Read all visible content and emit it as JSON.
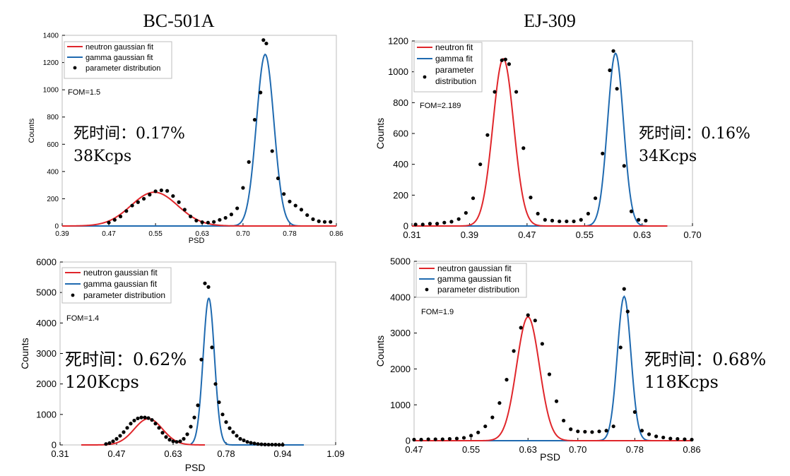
{
  "colors": {
    "neutron": "#e0262b",
    "gamma": "#1f6ab0",
    "points": "#000000",
    "axis": "#000000",
    "box": "#bdbdbd"
  },
  "chart_data": [
    {
      "type": "line",
      "column_title": "BC-501A",
      "xlabel": "PSD",
      "ylabel": "Counts",
      "xlim": [
        0.39,
        0.86
      ],
      "ylim": [
        0,
        1400
      ],
      "xticks": [
        "0.39",
        "0.47",
        "0.55",
        "0.63",
        "0.70",
        "0.78",
        "0.86"
      ],
      "yticks": [
        "0",
        "200",
        "400",
        "600",
        "800",
        "1000",
        "1200",
        "1400"
      ],
      "legend": {
        "position": "top-left",
        "entries": [
          "neutron gaussian fit",
          "gamma gaussian fit",
          "parameter distribution"
        ]
      },
      "fom": "FOM=1.5",
      "annotation": {
        "line1": "死时间：0.17%",
        "line2": "38Kcps"
      },
      "neutron_fit": {
        "mean": 0.548,
        "sigma": 0.04,
        "amplitude": 248,
        "range": [
          0.39,
          0.86
        ]
      },
      "gamma_fit": {
        "mean": 0.738,
        "sigma": 0.015,
        "amplitude": 1260,
        "range": [
          0.39,
          0.86
        ]
      },
      "points": {
        "x": [
          0.47,
          0.48,
          0.49,
          0.5,
          0.51,
          0.52,
          0.53,
          0.54,
          0.55,
          0.56,
          0.57,
          0.58,
          0.59,
          0.6,
          0.61,
          0.62,
          0.63,
          0.64,
          0.65,
          0.66,
          0.67,
          0.68,
          0.69,
          0.7,
          0.71,
          0.72,
          0.73,
          0.735,
          0.74,
          0.75,
          0.76,
          0.77,
          0.78,
          0.79,
          0.8,
          0.81,
          0.82,
          0.83,
          0.84,
          0.85
        ],
        "y": [
          25,
          45,
          70,
          110,
          150,
          175,
          200,
          230,
          255,
          262,
          258,
          220,
          175,
          120,
          70,
          40,
          28,
          25,
          30,
          45,
          60,
          85,
          130,
          280,
          470,
          780,
          980,
          1365,
          1340,
          550,
          350,
          235,
          180,
          150,
          120,
          80,
          50,
          35,
          30,
          30
        ]
      }
    },
    {
      "type": "line",
      "column_title": "EJ-309",
      "xlabel": "",
      "ylabel": "Counts",
      "xlim": [
        0.31,
        0.7
      ],
      "ylim": [
        0,
        1200
      ],
      "xticks": [
        "0.31",
        "0.39",
        "0.47",
        "0.55",
        "0.63",
        "0.70"
      ],
      "yticks": [
        "0",
        "200",
        "400",
        "600",
        "800",
        "1000",
        "1200"
      ],
      "legend": {
        "position": "top-left",
        "entries": [
          "neutron fit",
          "gamma fit",
          "parameter distribution"
        ]
      },
      "fom": "FOM=2.189",
      "annotation": {
        "line1": "死时间：0.16%",
        "line2": "34Kcps"
      },
      "neutron_fit": {
        "mean": 0.437,
        "sigma": 0.0145,
        "amplitude": 1085,
        "range": [
          0.31,
          0.665
        ]
      },
      "gamma_fit": {
        "mean": 0.593,
        "sigma": 0.011,
        "amplitude": 1120,
        "range": [
          0.31,
          0.665
        ]
      },
      "points": {
        "x": [
          0.315,
          0.325,
          0.335,
          0.345,
          0.355,
          0.365,
          0.375,
          0.385,
          0.395,
          0.405,
          0.415,
          0.425,
          0.435,
          0.44,
          0.445,
          0.455,
          0.465,
          0.475,
          0.485,
          0.495,
          0.505,
          0.515,
          0.525,
          0.535,
          0.545,
          0.555,
          0.565,
          0.575,
          0.585,
          0.59,
          0.595,
          0.605,
          0.615,
          0.625,
          0.635
        ],
        "y": [
          10,
          10,
          15,
          15,
          22,
          28,
          45,
          85,
          180,
          400,
          590,
          870,
          1075,
          1080,
          1050,
          870,
          505,
          185,
          80,
          40,
          35,
          30,
          30,
          30,
          40,
          80,
          180,
          470,
          1010,
          1135,
          890,
          390,
          95,
          40,
          35
        ]
      }
    },
    {
      "type": "line",
      "column_title": "",
      "xlabel": "PSD",
      "ylabel": "Counts",
      "xlim": [
        0.31,
        1.09
      ],
      "ylim": [
        0,
        6000
      ],
      "xticks": [
        "0.31",
        "0.47",
        "0.63",
        "0.78",
        "0.94",
        "1.09"
      ],
      "yticks": [
        "0",
        "1000",
        "2000",
        "3000",
        "4000",
        "5000",
        "6000"
      ],
      "legend": {
        "position": "top-left",
        "entries": [
          "neutron gaussian fit",
          "gamma gaussian fit",
          "parameter distribution"
        ]
      },
      "fom": "FOM=1.4",
      "annotation": {
        "line1": "死时间：0.62%",
        "line2": "120Kcps"
      },
      "neutron_fit": {
        "mean": 0.56,
        "sigma": 0.04,
        "amplitude": 860,
        "range": [
          0.37,
          0.72
        ]
      },
      "gamma_fit": {
        "mean": 0.731,
        "sigma": 0.016,
        "amplitude": 4810,
        "range": [
          0.68,
          1.0
        ]
      },
      "points": {
        "x": [
          0.44,
          0.45,
          0.46,
          0.47,
          0.48,
          0.49,
          0.5,
          0.51,
          0.52,
          0.53,
          0.54,
          0.55,
          0.56,
          0.57,
          0.58,
          0.59,
          0.6,
          0.61,
          0.62,
          0.63,
          0.64,
          0.65,
          0.66,
          0.67,
          0.68,
          0.69,
          0.7,
          0.71,
          0.72,
          0.73,
          0.74,
          0.75,
          0.76,
          0.77,
          0.78,
          0.79,
          0.8,
          0.81,
          0.82,
          0.83,
          0.84,
          0.85,
          0.86,
          0.87,
          0.88,
          0.89,
          0.9,
          0.91,
          0.92,
          0.93,
          0.94
        ],
        "y": [
          30,
          60,
          120,
          200,
          300,
          420,
          560,
          700,
          800,
          870,
          900,
          900,
          880,
          820,
          700,
          560,
          400,
          260,
          170,
          120,
          100,
          120,
          200,
          350,
          600,
          900,
          1300,
          2800,
          5300,
          5180,
          3200,
          2000,
          1400,
          1000,
          750,
          550,
          420,
          300,
          200,
          150,
          100,
          70,
          50,
          30,
          20,
          15,
          10,
          10,
          8,
          5,
          5
        ]
      }
    },
    {
      "type": "line",
      "column_title": "",
      "xlabel": "PSD",
      "ylabel": "Counts",
      "xlim": [
        0.47,
        0.86
      ],
      "ylim": [
        0,
        5000
      ],
      "xticks": [
        "0.47",
        "0.55",
        "0.63",
        "0.70",
        "0.78",
        "0.86"
      ],
      "yticks": [
        "0",
        "1000",
        "2000",
        "3000",
        "4000",
        "5000"
      ],
      "legend": {
        "position": "top-left",
        "entries": [
          "neutron gaussian fit",
          "gamma gaussian fit",
          "parameter distribution"
        ]
      },
      "fom": "FOM=1.9",
      "annotation": {
        "line1": "死时间：0.68%",
        "line2": "118Kcps"
      },
      "neutron_fit": {
        "mean": 0.63,
        "sigma": 0.016,
        "amplitude": 3450,
        "range": [
          0.47,
          0.86
        ]
      },
      "gamma_fit": {
        "mean": 0.765,
        "sigma": 0.0095,
        "amplitude": 4020,
        "range": [
          0.47,
          0.86
        ]
      },
      "points": {
        "x": [
          0.47,
          0.48,
          0.49,
          0.5,
          0.51,
          0.52,
          0.53,
          0.54,
          0.55,
          0.56,
          0.57,
          0.58,
          0.59,
          0.6,
          0.61,
          0.62,
          0.63,
          0.64,
          0.65,
          0.66,
          0.67,
          0.68,
          0.69,
          0.7,
          0.71,
          0.72,
          0.73,
          0.74,
          0.75,
          0.76,
          0.765,
          0.77,
          0.78,
          0.79,
          0.8,
          0.81,
          0.82,
          0.83,
          0.84,
          0.85,
          0.86
        ],
        "y": [
          30,
          30,
          40,
          40,
          40,
          50,
          60,
          80,
          140,
          230,
          400,
          650,
          1050,
          1700,
          2500,
          3150,
          3500,
          3350,
          2700,
          1850,
          1100,
          560,
          320,
          260,
          250,
          240,
          260,
          280,
          400,
          2600,
          4230,
          3600,
          800,
          280,
          180,
          120,
          90,
          60,
          50,
          40,
          30
        ]
      }
    }
  ]
}
